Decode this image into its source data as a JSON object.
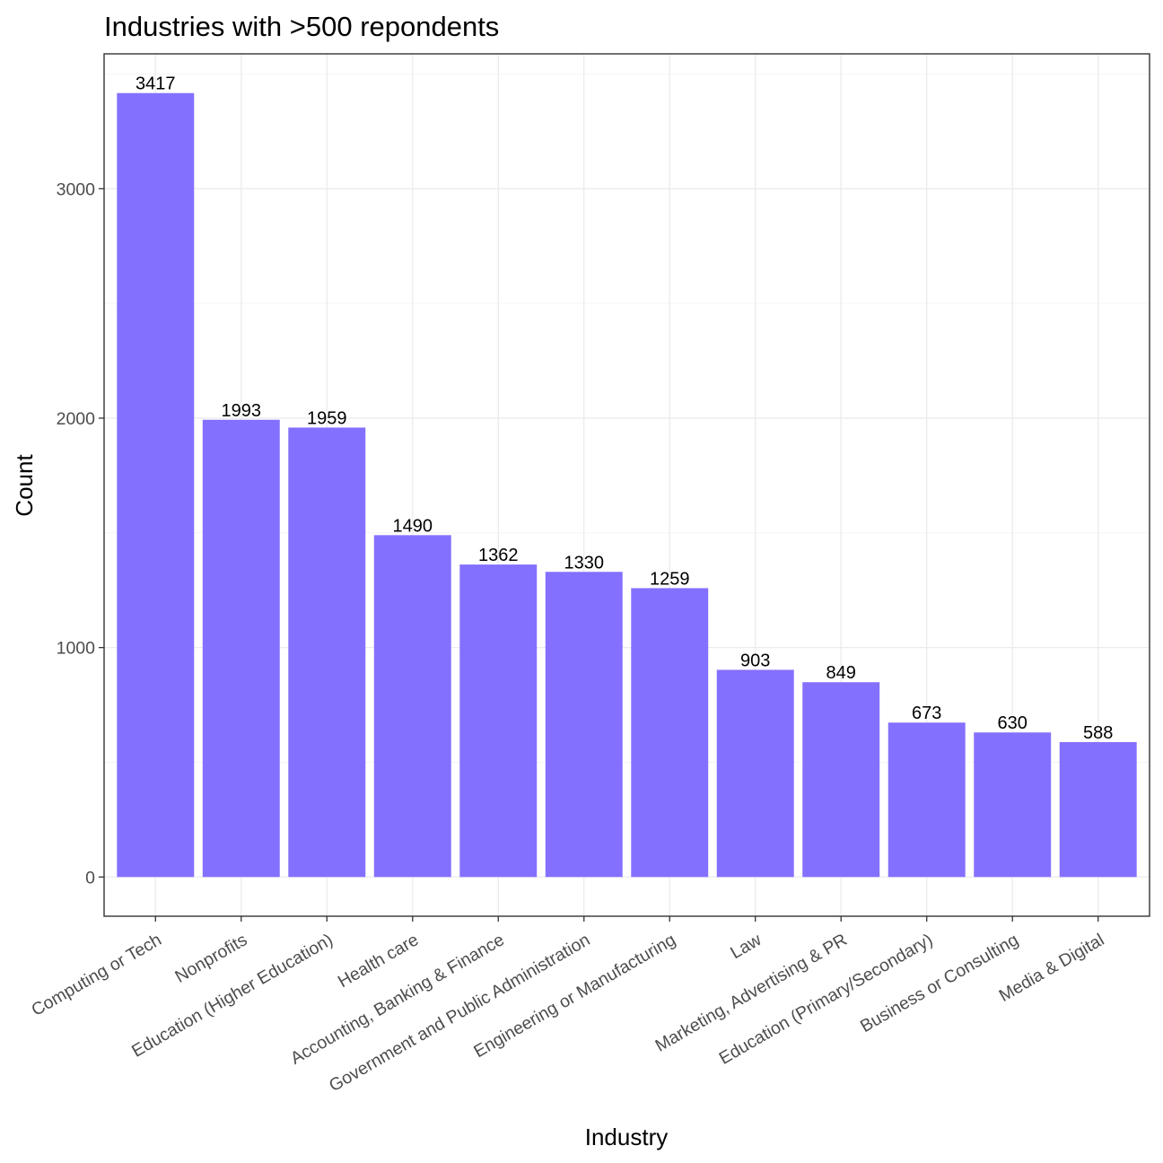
{
  "chart_data": {
    "type": "bar",
    "title": "Industries with >500 repondents",
    "xlabel": "Industry",
    "ylabel": "Count",
    "categories": [
      "Computing or Tech",
      "Nonprofits",
      "Education (Higher Education)",
      "Health care",
      "Accounting, Banking & Finance",
      "Government and Public Administration",
      "Engineering or Manufacturing",
      "Law",
      "Marketing, Advertising & PR",
      "Education (Primary/Secondary)",
      "Business or Consulting",
      "Media & Digital"
    ],
    "values": [
      3417,
      1993,
      1959,
      1490,
      1362,
      1330,
      1259,
      903,
      849,
      673,
      630,
      588
    ],
    "ylim": [
      -171,
      3588
    ],
    "yticks": [
      0,
      1000,
      2000,
      3000
    ],
    "grid": true,
    "bar_color": "#8470FF",
    "data_labels": true
  }
}
